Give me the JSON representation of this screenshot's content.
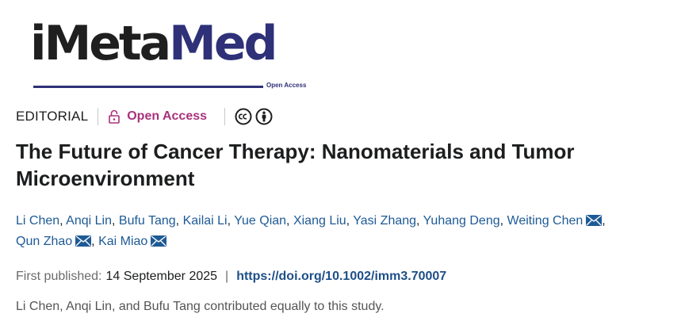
{
  "logo": {
    "part1": "iMeta",
    "part2": "Med",
    "tagline": "Open Access"
  },
  "article": {
    "type": "EDITORIAL",
    "access_label": "Open Access",
    "license_icons": [
      "creative-commons-icon",
      "attribution-icon"
    ],
    "title": "The Future of Cancer Therapy: Nanomaterials and Tumor Microenvironment",
    "authors": [
      {
        "name": "Li Chen",
        "email_icon": false
      },
      {
        "name": "Anqi Lin",
        "email_icon": false
      },
      {
        "name": "Bufu Tang",
        "email_icon": false
      },
      {
        "name": "Kailai Li",
        "email_icon": false
      },
      {
        "name": "Yue Qian",
        "email_icon": false
      },
      {
        "name": "Xiang Liu",
        "email_icon": false
      },
      {
        "name": "Yasi Zhang",
        "email_icon": false
      },
      {
        "name": "Yuhang Deng",
        "email_icon": false
      },
      {
        "name": "Weiting Chen",
        "email_icon": true
      },
      {
        "name": "Qun Zhao",
        "email_icon": true
      },
      {
        "name": "Kai Miao",
        "email_icon": true
      }
    ],
    "first_published_label": "First published:",
    "first_published_date": "14 September 2025",
    "separator": "|",
    "doi": "https://doi.org/10.1002/imm3.70007",
    "contribution_note": "Li Chen, Anqi Lin, and Bufu Tang contributed equally to this study."
  },
  "colors": {
    "brand_navy": "#2e3178",
    "open_access": "#a8327a",
    "author_link": "#1e5a96",
    "doi_link": "#1e4f88"
  }
}
